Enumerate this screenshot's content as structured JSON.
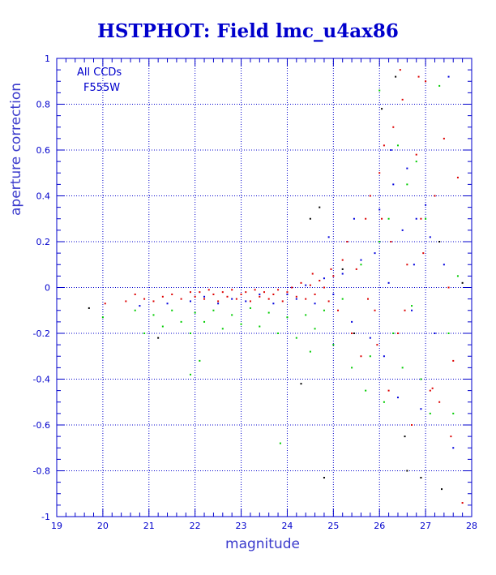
{
  "chart_data": {
    "type": "scatter",
    "title": "HSTPHOT: Field lmc_u4ax86",
    "xlabel": "magnitude",
    "ylabel": "aperture correction",
    "xlim": [
      19,
      28
    ],
    "ylim": [
      -1,
      1
    ],
    "x_ticks": [
      "19",
      "20",
      "21",
      "22",
      "23",
      "24",
      "25",
      "26",
      "27",
      "28"
    ],
    "y_ticks": [
      "-1",
      "-0.8",
      "-0.6",
      "-0.4",
      "-0.2",
      "0",
      "0.2",
      "0.4",
      "0.6",
      "0.8",
      "1"
    ],
    "grid": "dashed",
    "annotation": [
      "All CCDs",
      "F555W"
    ],
    "colors": {
      "axis": "#0000cc",
      "grid": "#0000cc",
      "red": "#dd0000",
      "blue": "#0000dd",
      "green": "#00cc00",
      "black": "#000000"
    },
    "series": [
      {
        "color": "#dd0000",
        "points": [
          [
            20.05,
            -0.07
          ],
          [
            20.5,
            -0.06
          ],
          [
            20.7,
            -0.03
          ],
          [
            20.9,
            -0.05
          ],
          [
            21.1,
            -0.06
          ],
          [
            21.3,
            -0.04
          ],
          [
            21.5,
            -0.03
          ],
          [
            21.7,
            -0.05
          ],
          [
            21.9,
            -0.02
          ],
          [
            22.0,
            -0.04
          ],
          [
            22.1,
            -0.02
          ],
          [
            22.2,
            -0.05
          ],
          [
            22.3,
            -0.01
          ],
          [
            22.4,
            -0.03
          ],
          [
            22.5,
            -0.06
          ],
          [
            22.6,
            -0.02
          ],
          [
            22.7,
            -0.04
          ],
          [
            22.8,
            -0.01
          ],
          [
            22.9,
            -0.05
          ],
          [
            23.0,
            -0.03
          ],
          [
            23.1,
            -0.02
          ],
          [
            23.2,
            -0.06
          ],
          [
            23.3,
            -0.01
          ],
          [
            23.4,
            -0.04
          ],
          [
            23.5,
            -0.02
          ],
          [
            23.6,
            -0.05
          ],
          [
            23.7,
            -0.03
          ],
          [
            23.8,
            -0.01
          ],
          [
            23.9,
            -0.06
          ],
          [
            24.0,
            -0.02
          ],
          [
            24.1,
            0.0
          ],
          [
            24.2,
            -0.04
          ],
          [
            24.3,
            0.02
          ],
          [
            24.4,
            -0.05
          ],
          [
            24.5,
            0.01
          ],
          [
            24.6,
            -0.03
          ],
          [
            24.7,
            0.03
          ],
          [
            24.8,
            0.0
          ],
          [
            24.9,
            -0.06
          ],
          [
            25.0,
            0.05
          ],
          [
            25.1,
            -0.1
          ],
          [
            25.2,
            0.12
          ],
          [
            25.3,
            0.2
          ],
          [
            25.4,
            -0.2
          ],
          [
            25.5,
            0.08
          ],
          [
            25.6,
            -0.3
          ],
          [
            25.7,
            0.3
          ],
          [
            25.8,
            0.4
          ],
          [
            25.9,
            -0.1
          ],
          [
            26.0,
            0.5
          ],
          [
            26.1,
            0.62
          ],
          [
            26.2,
            -0.45
          ],
          [
            26.3,
            0.7
          ],
          [
            26.4,
            -0.2
          ],
          [
            26.5,
            0.82
          ],
          [
            26.6,
            0.1
          ],
          [
            26.7,
            -0.6
          ],
          [
            26.8,
            0.58
          ],
          [
            26.9,
            0.3
          ],
          [
            27.0,
            0.9
          ],
          [
            27.1,
            -0.45
          ],
          [
            27.2,
            0.4
          ],
          [
            27.3,
            -0.5
          ],
          [
            27.4,
            0.65
          ],
          [
            27.5,
            0.0
          ],
          [
            27.6,
            -0.32
          ],
          [
            27.7,
            0.48
          ],
          [
            27.8,
            -0.94
          ],
          [
            26.25,
            0.2
          ],
          [
            25.95,
            -0.25
          ],
          [
            24.95,
            0.08
          ],
          [
            24.55,
            0.06
          ],
          [
            26.45,
            0.95
          ],
          [
            26.85,
            0.92
          ],
          [
            27.15,
            -0.44
          ],
          [
            27.55,
            -0.65
          ],
          [
            26.05,
            0.3
          ],
          [
            25.75,
            -0.05
          ],
          [
            26.55,
            -0.1
          ],
          [
            26.95,
            0.15
          ]
        ]
      },
      {
        "color": "#0000dd",
        "points": [
          [
            20.8,
            -0.08
          ],
          [
            21.4,
            -0.07
          ],
          [
            21.9,
            -0.06
          ],
          [
            22.2,
            -0.04
          ],
          [
            22.5,
            -0.07
          ],
          [
            22.8,
            -0.05
          ],
          [
            23.1,
            -0.06
          ],
          [
            23.4,
            -0.03
          ],
          [
            23.7,
            -0.07
          ],
          [
            24.0,
            -0.03
          ],
          [
            24.2,
            -0.05
          ],
          [
            24.4,
            0.01
          ],
          [
            24.6,
            -0.07
          ],
          [
            24.8,
            0.04
          ],
          [
            25.0,
            -0.03
          ],
          [
            25.2,
            0.06
          ],
          [
            25.4,
            -0.15
          ],
          [
            25.6,
            0.12
          ],
          [
            25.8,
            -0.22
          ],
          [
            26.0,
            0.34
          ],
          [
            26.1,
            -0.3
          ],
          [
            26.2,
            0.02
          ],
          [
            26.3,
            0.45
          ],
          [
            26.4,
            -0.48
          ],
          [
            26.5,
            0.25
          ],
          [
            26.6,
            0.52
          ],
          [
            26.7,
            -0.1
          ],
          [
            26.8,
            0.3
          ],
          [
            26.9,
            -0.53
          ],
          [
            27.0,
            0.36
          ],
          [
            27.2,
            -0.2
          ],
          [
            27.4,
            0.1
          ],
          [
            27.6,
            -0.7
          ],
          [
            27.5,
            0.92
          ],
          [
            26.25,
            0.6
          ],
          [
            25.45,
            0.3
          ],
          [
            24.9,
            0.22
          ],
          [
            25.9,
            0.15
          ],
          [
            26.75,
            0.1
          ],
          [
            27.1,
            0.22
          ]
        ]
      },
      {
        "color": "#00cc00",
        "points": [
          [
            20.0,
            -0.13
          ],
          [
            20.7,
            -0.1
          ],
          [
            20.9,
            -0.2
          ],
          [
            21.1,
            -0.12
          ],
          [
            21.3,
            -0.17
          ],
          [
            21.5,
            -0.1
          ],
          [
            21.7,
            -0.15
          ],
          [
            21.9,
            -0.2
          ],
          [
            22.0,
            -0.11
          ],
          [
            22.2,
            -0.15
          ],
          [
            22.4,
            -0.1
          ],
          [
            22.6,
            -0.18
          ],
          [
            22.8,
            -0.12
          ],
          [
            23.0,
            -0.16
          ],
          [
            23.2,
            -0.09
          ],
          [
            23.4,
            -0.17
          ],
          [
            23.6,
            -0.11
          ],
          [
            23.8,
            -0.2
          ],
          [
            24.0,
            -0.13
          ],
          [
            24.2,
            -0.22
          ],
          [
            24.4,
            -0.12
          ],
          [
            24.6,
            -0.18
          ],
          [
            24.8,
            -0.1
          ],
          [
            25.0,
            -0.25
          ],
          [
            25.2,
            -0.05
          ],
          [
            25.4,
            -0.35
          ],
          [
            25.6,
            0.1
          ],
          [
            25.8,
            -0.3
          ],
          [
            26.0,
            0.2
          ],
          [
            26.1,
            -0.5
          ],
          [
            26.2,
            0.3
          ],
          [
            26.3,
            -0.2
          ],
          [
            26.4,
            0.62
          ],
          [
            26.5,
            -0.35
          ],
          [
            26.6,
            0.45
          ],
          [
            26.7,
            -0.08
          ],
          [
            26.8,
            0.55
          ],
          [
            26.9,
            -0.4
          ],
          [
            27.0,
            0.3
          ],
          [
            27.1,
            -0.55
          ],
          [
            27.3,
            0.88
          ],
          [
            27.5,
            -0.2
          ],
          [
            27.7,
            0.05
          ],
          [
            27.6,
            -0.55
          ],
          [
            22.1,
            -0.32
          ],
          [
            21.9,
            -0.38
          ],
          [
            23.85,
            -0.68
          ],
          [
            26.0,
            0.86
          ],
          [
            25.7,
            -0.45
          ],
          [
            24.5,
            -0.28
          ]
        ]
      },
      {
        "color": "#000000",
        "points": [
          [
            19.7,
            -0.09
          ],
          [
            21.2,
            -0.22
          ],
          [
            24.5,
            0.3
          ],
          [
            24.7,
            0.35
          ],
          [
            25.2,
            0.08
          ],
          [
            26.05,
            0.78
          ],
          [
            26.9,
            -0.83
          ],
          [
            27.3,
            0.2
          ],
          [
            26.35,
            0.92
          ],
          [
            24.8,
            -0.83
          ],
          [
            27.35,
            -0.88
          ],
          [
            26.6,
            -0.8
          ],
          [
            24.3,
            -0.42
          ],
          [
            25.45,
            -0.2
          ],
          [
            27.8,
            0.02
          ],
          [
            26.55,
            -0.65
          ]
        ]
      }
    ]
  }
}
